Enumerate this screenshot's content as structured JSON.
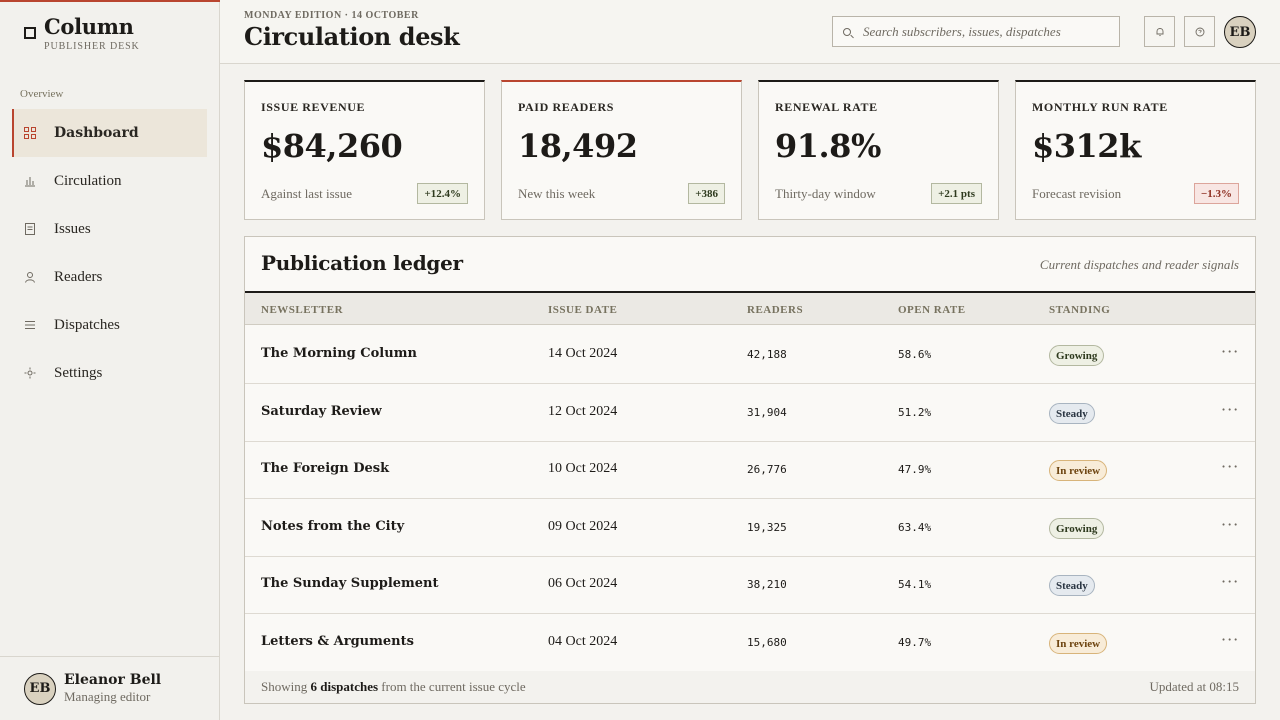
{
  "brand": {
    "name": "Column",
    "subtitle": "PUBLISHER DESK"
  },
  "sidebar": {
    "section": "Overview",
    "items": [
      {
        "label": "Dashboard",
        "icon": "grid-icon",
        "active": true
      },
      {
        "label": "Circulation",
        "icon": "bar-chart-icon"
      },
      {
        "label": "Issues",
        "icon": "document-icon"
      },
      {
        "label": "Readers",
        "icon": "person-icon"
      },
      {
        "label": "Dispatches",
        "icon": "list-icon"
      },
      {
        "label": "Settings",
        "icon": "gear-icon"
      }
    ]
  },
  "user": {
    "initials": "EB",
    "name": "Eleanor Bell",
    "role": "Managing editor"
  },
  "header": {
    "edition": "MONDAY EDITION · 14 OCTOBER",
    "title": "Circulation desk",
    "search_placeholder": "Search subscribers, issues, dispatches",
    "avatar": "EB"
  },
  "cards": [
    {
      "label": "ISSUE REVENUE",
      "value": "$84,260",
      "foot": "Against last issue",
      "delta": "+12.4%",
      "trend": "up"
    },
    {
      "label": "PAID READERS",
      "value": "18,492",
      "foot": "New this week",
      "delta": "+386",
      "trend": "up"
    },
    {
      "label": "RENEWAL RATE",
      "value": "91.8%",
      "foot": "Thirty-day window",
      "delta": "+2.1 pts",
      "trend": "up"
    },
    {
      "label": "MONTHLY RUN RATE",
      "value": "$312k",
      "foot": "Forecast revision",
      "delta": "−1.3%",
      "trend": "down"
    }
  ],
  "ledger": {
    "title": "Publication ledger",
    "subtitle": "Current dispatches and reader signals",
    "columns": [
      "NEWSLETTER",
      "ISSUE DATE",
      "READERS",
      "OPEN RATE",
      "STANDING"
    ],
    "rows": [
      {
        "name": "The Morning Column",
        "date": "14 Oct 2024",
        "readers": "42,188",
        "open": "58.6%",
        "standing": "Growing"
      },
      {
        "name": "Saturday Review",
        "date": "12 Oct 2024",
        "readers": "31,904",
        "open": "51.2%",
        "standing": "Steady"
      },
      {
        "name": "The Foreign Desk",
        "date": "10 Oct 2024",
        "readers": "26,776",
        "open": "47.9%",
        "standing": "In review"
      },
      {
        "name": "Notes from the City",
        "date": "09 Oct 2024",
        "readers": "19,325",
        "open": "63.4%",
        "standing": "Growing"
      },
      {
        "name": "The Sunday Supplement",
        "date": "06 Oct 2024",
        "readers": "38,210",
        "open": "54.1%",
        "standing": "Steady"
      },
      {
        "name": "Letters & Arguments",
        "date": "04 Oct 2024",
        "readers": "15,680",
        "open": "49.7%",
        "standing": "In review"
      }
    ],
    "footer": {
      "prefix": "Showing ",
      "count": "6 dispatches",
      "suffix": " from the current issue cycle",
      "updated": "Updated at 08:15"
    }
  },
  "colors": {
    "accent": "#b9452f",
    "ink": "#1d1b18",
    "paper": "#faf9f6"
  }
}
